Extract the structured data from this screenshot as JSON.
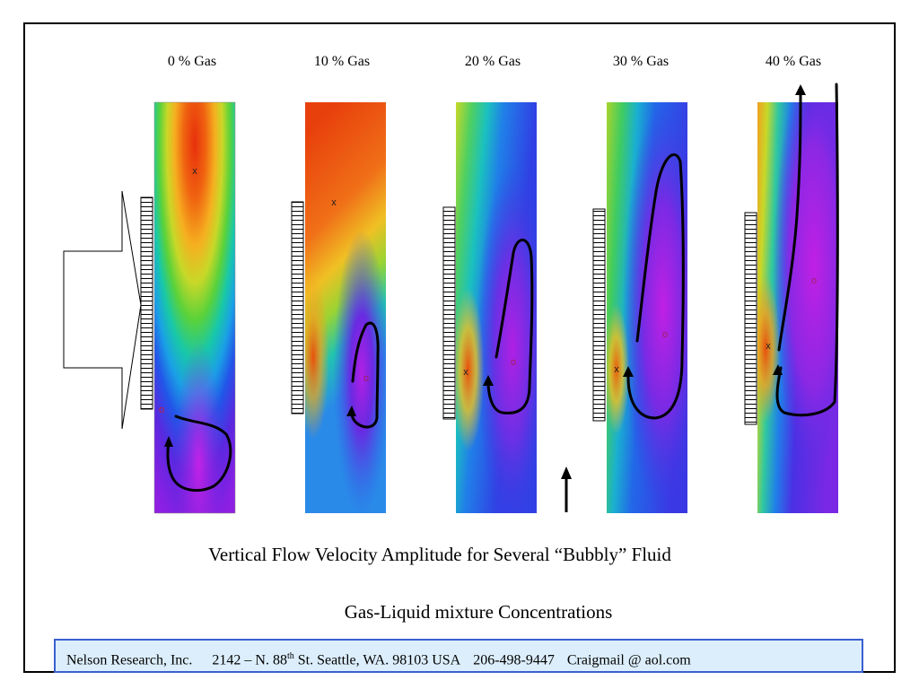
{
  "panels": [
    {
      "label": "0 % Gas"
    },
    {
      "label": "10 % Gas"
    },
    {
      "label": "20 % Gas"
    },
    {
      "label": "30 % Gas"
    },
    {
      "label": "40 % Gas"
    }
  ],
  "caption_line1": "Vertical Flow Velocity Amplitude for Several “Bubbly” Fluid",
  "caption_line2": "Gas-Liquid mixture Concentrations",
  "footer": {
    "company": "Nelson Research, Inc.",
    "address_pre": "2142 –  N. 88",
    "address_sup": "th",
    "address_post": " St. Seattle, WA. 98103   USA",
    "phone": "206-498-9447",
    "email": "Craigmail @ aol.com"
  },
  "marker_max": "x",
  "marker_min": "o",
  "colors": {
    "frame": "#000000",
    "footer_border": "#3a5fcf",
    "footer_bg": "#dceefc"
  }
}
